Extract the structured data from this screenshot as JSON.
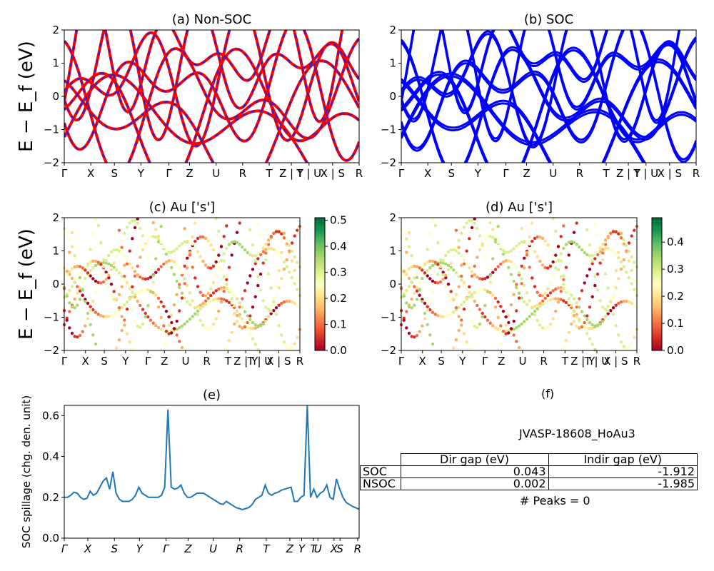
{
  "chart_data": [
    {
      "panel": "a",
      "type": "line",
      "title": "(a) Non-SOC",
      "ylabel": "E − E_f (eV)",
      "ylim": [
        -2,
        2
      ],
      "yticks": [
        "2",
        "1",
        "0",
        "−1",
        "−2"
      ],
      "xticks": [
        "Γ",
        "X",
        "S",
        "Y",
        "Γ",
        "Z",
        "U",
        "R",
        "T",
        "Z | Y",
        "T | U",
        "X | S",
        "R"
      ],
      "series": [
        {
          "color": "#ff0000",
          "style": "solid"
        },
        {
          "color": "#2222dd",
          "style": "dashed"
        }
      ]
    },
    {
      "panel": "b",
      "type": "line",
      "title": "(b) SOC",
      "ylim": [
        -2,
        2
      ],
      "yticks": [
        "2",
        "1",
        "0",
        "−1",
        "−2"
      ],
      "xticks": [
        "Γ",
        "X",
        "S",
        "Y",
        "Γ",
        "Z",
        "U",
        "R",
        "T",
        "Z | Y",
        "T | U",
        "X | S",
        "R"
      ],
      "series": [
        {
          "color": "#0000ff",
          "style": "solid"
        }
      ]
    },
    {
      "panel": "c",
      "type": "scatter",
      "title": "(c)  Au ['s']",
      "ylabel": "E − E_f (eV)",
      "ylim": [
        -2,
        2
      ],
      "yticks": [
        "2",
        "1",
        "0",
        "−1",
        "−2"
      ],
      "xticks": [
        "Γ",
        "X",
        "S",
        "Y",
        "Γ",
        "Z",
        "U",
        "R",
        "T",
        "Z | Y",
        "T | U",
        "X | S",
        "R"
      ],
      "colorbar": {
        "min": 0.0,
        "max": 0.51,
        "ticks": [
          "0.5",
          "0.4",
          "0.3",
          "0.2",
          "0.1",
          "0.0"
        ],
        "colormap": "RdYlGn"
      }
    },
    {
      "panel": "d",
      "type": "scatter",
      "title": "(d) Au ['s']",
      "ylim": [
        -2,
        2
      ],
      "yticks": [
        "2",
        "1",
        "0",
        "−1",
        "−2"
      ],
      "xticks": [
        "Γ",
        "X",
        "S",
        "Y",
        "Γ",
        "Z",
        "U",
        "R",
        "T",
        "Z | Y",
        "T | U",
        "X | S",
        "R"
      ],
      "colorbar": {
        "min": 0.0,
        "max": 0.49,
        "ticks": [
          "0.4",
          "0.3",
          "0.2",
          "0.1",
          "0.0"
        ],
        "colormap": "RdYlGn"
      }
    },
    {
      "panel": "e",
      "type": "line",
      "title": "(e)",
      "ylabel": "SOC spillage (chg. den. unit)",
      "ylim": [
        0.0,
        0.65
      ],
      "yticks": [
        "0.6",
        "0.4",
        "0.2",
        "0.0"
      ],
      "xticks": [
        "Γ",
        "X",
        "S",
        "Y",
        "Γ",
        "Z",
        "U",
        "R",
        "T",
        "Z",
        "Y",
        "T",
        "U",
        "X",
        "S",
        "R"
      ],
      "series": [
        {
          "color": "#1f77b4",
          "values": [
            0.2,
            0.2,
            0.21,
            0.225,
            0.22,
            0.2,
            0.19,
            0.195,
            0.23,
            0.21,
            0.22,
            0.25,
            0.28,
            0.295,
            0.24,
            0.325,
            0.22,
            0.19,
            0.18,
            0.18,
            0.18,
            0.19,
            0.21,
            0.25,
            0.22,
            0.21,
            0.2,
            0.2,
            0.2,
            0.2,
            0.21,
            0.25,
            0.63,
            0.25,
            0.24,
            0.245,
            0.26,
            0.22,
            0.2,
            0.2,
            0.21,
            0.22,
            0.22,
            0.22,
            0.21,
            0.2,
            0.19,
            0.18,
            0.17,
            0.165,
            0.18,
            0.17,
            0.16,
            0.15,
            0.145,
            0.14,
            0.145,
            0.15,
            0.165,
            0.19,
            0.2,
            0.21,
            0.26,
            0.22,
            0.21,
            0.22,
            0.225,
            0.235,
            0.24,
            0.245,
            0.25,
            0.18,
            0.18,
            0.2,
            0.21,
            0.65,
            0.2,
            0.24,
            0.2,
            0.22,
            0.23,
            0.26,
            0.2,
            0.19,
            0.29,
            0.24,
            0.2,
            0.175,
            0.165,
            0.155,
            0.148,
            0.142
          ]
        }
      ]
    }
  ],
  "panel_f": {
    "title": "(f)",
    "name": "JVASP-18608_HoAu3",
    "table": {
      "columns": [
        "Dir gap (eV)",
        "Indir gap (eV)"
      ],
      "rows": [
        {
          "label": "SOC",
          "dir": "0.043",
          "indir": "-1.912"
        },
        {
          "label": "NSOC",
          "dir": "0.002",
          "indir": "-1.985"
        }
      ]
    },
    "peaks": "# Peaks = 0"
  }
}
